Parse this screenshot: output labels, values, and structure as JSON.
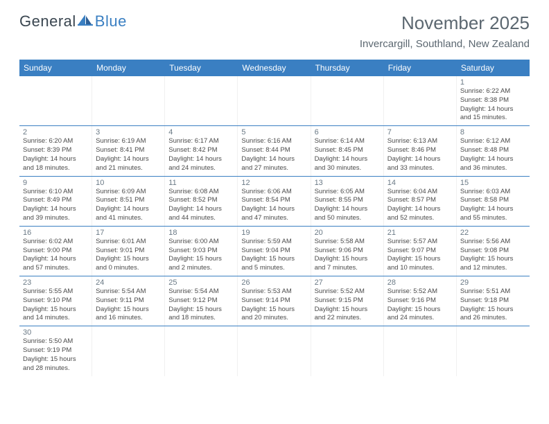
{
  "brand": {
    "part1": "General",
    "part2": "Blue"
  },
  "title": "November 2025",
  "location": "Invercargill, Southland, New Zealand",
  "colors": {
    "header_bg": "#3a7fc2",
    "header_text": "#ffffff",
    "logo_gray": "#5b6770",
    "logo_blue": "#3a7fc2",
    "cell_border": "#3a7fc2"
  },
  "day_names": [
    "Sunday",
    "Monday",
    "Tuesday",
    "Wednesday",
    "Thursday",
    "Friday",
    "Saturday"
  ],
  "weeks": [
    [
      null,
      null,
      null,
      null,
      null,
      null,
      {
        "n": "1",
        "sr": "Sunrise: 6:22 AM",
        "ss": "Sunset: 8:38 PM",
        "dl1": "Daylight: 14 hours",
        "dl2": "and 15 minutes."
      }
    ],
    [
      {
        "n": "2",
        "sr": "Sunrise: 6:20 AM",
        "ss": "Sunset: 8:39 PM",
        "dl1": "Daylight: 14 hours",
        "dl2": "and 18 minutes."
      },
      {
        "n": "3",
        "sr": "Sunrise: 6:19 AM",
        "ss": "Sunset: 8:41 PM",
        "dl1": "Daylight: 14 hours",
        "dl2": "and 21 minutes."
      },
      {
        "n": "4",
        "sr": "Sunrise: 6:17 AM",
        "ss": "Sunset: 8:42 PM",
        "dl1": "Daylight: 14 hours",
        "dl2": "and 24 minutes."
      },
      {
        "n": "5",
        "sr": "Sunrise: 6:16 AM",
        "ss": "Sunset: 8:44 PM",
        "dl1": "Daylight: 14 hours",
        "dl2": "and 27 minutes."
      },
      {
        "n": "6",
        "sr": "Sunrise: 6:14 AM",
        "ss": "Sunset: 8:45 PM",
        "dl1": "Daylight: 14 hours",
        "dl2": "and 30 minutes."
      },
      {
        "n": "7",
        "sr": "Sunrise: 6:13 AM",
        "ss": "Sunset: 8:46 PM",
        "dl1": "Daylight: 14 hours",
        "dl2": "and 33 minutes."
      },
      {
        "n": "8",
        "sr": "Sunrise: 6:12 AM",
        "ss": "Sunset: 8:48 PM",
        "dl1": "Daylight: 14 hours",
        "dl2": "and 36 minutes."
      }
    ],
    [
      {
        "n": "9",
        "sr": "Sunrise: 6:10 AM",
        "ss": "Sunset: 8:49 PM",
        "dl1": "Daylight: 14 hours",
        "dl2": "and 39 minutes."
      },
      {
        "n": "10",
        "sr": "Sunrise: 6:09 AM",
        "ss": "Sunset: 8:51 PM",
        "dl1": "Daylight: 14 hours",
        "dl2": "and 41 minutes."
      },
      {
        "n": "11",
        "sr": "Sunrise: 6:08 AM",
        "ss": "Sunset: 8:52 PM",
        "dl1": "Daylight: 14 hours",
        "dl2": "and 44 minutes."
      },
      {
        "n": "12",
        "sr": "Sunrise: 6:06 AM",
        "ss": "Sunset: 8:54 PM",
        "dl1": "Daylight: 14 hours",
        "dl2": "and 47 minutes."
      },
      {
        "n": "13",
        "sr": "Sunrise: 6:05 AM",
        "ss": "Sunset: 8:55 PM",
        "dl1": "Daylight: 14 hours",
        "dl2": "and 50 minutes."
      },
      {
        "n": "14",
        "sr": "Sunrise: 6:04 AM",
        "ss": "Sunset: 8:57 PM",
        "dl1": "Daylight: 14 hours",
        "dl2": "and 52 minutes."
      },
      {
        "n": "15",
        "sr": "Sunrise: 6:03 AM",
        "ss": "Sunset: 8:58 PM",
        "dl1": "Daylight: 14 hours",
        "dl2": "and 55 minutes."
      }
    ],
    [
      {
        "n": "16",
        "sr": "Sunrise: 6:02 AM",
        "ss": "Sunset: 9:00 PM",
        "dl1": "Daylight: 14 hours",
        "dl2": "and 57 minutes."
      },
      {
        "n": "17",
        "sr": "Sunrise: 6:01 AM",
        "ss": "Sunset: 9:01 PM",
        "dl1": "Daylight: 15 hours",
        "dl2": "and 0 minutes."
      },
      {
        "n": "18",
        "sr": "Sunrise: 6:00 AM",
        "ss": "Sunset: 9:03 PM",
        "dl1": "Daylight: 15 hours",
        "dl2": "and 2 minutes."
      },
      {
        "n": "19",
        "sr": "Sunrise: 5:59 AM",
        "ss": "Sunset: 9:04 PM",
        "dl1": "Daylight: 15 hours",
        "dl2": "and 5 minutes."
      },
      {
        "n": "20",
        "sr": "Sunrise: 5:58 AM",
        "ss": "Sunset: 9:06 PM",
        "dl1": "Daylight: 15 hours",
        "dl2": "and 7 minutes."
      },
      {
        "n": "21",
        "sr": "Sunrise: 5:57 AM",
        "ss": "Sunset: 9:07 PM",
        "dl1": "Daylight: 15 hours",
        "dl2": "and 10 minutes."
      },
      {
        "n": "22",
        "sr": "Sunrise: 5:56 AM",
        "ss": "Sunset: 9:08 PM",
        "dl1": "Daylight: 15 hours",
        "dl2": "and 12 minutes."
      }
    ],
    [
      {
        "n": "23",
        "sr": "Sunrise: 5:55 AM",
        "ss": "Sunset: 9:10 PM",
        "dl1": "Daylight: 15 hours",
        "dl2": "and 14 minutes."
      },
      {
        "n": "24",
        "sr": "Sunrise: 5:54 AM",
        "ss": "Sunset: 9:11 PM",
        "dl1": "Daylight: 15 hours",
        "dl2": "and 16 minutes."
      },
      {
        "n": "25",
        "sr": "Sunrise: 5:54 AM",
        "ss": "Sunset: 9:12 PM",
        "dl1": "Daylight: 15 hours",
        "dl2": "and 18 minutes."
      },
      {
        "n": "26",
        "sr": "Sunrise: 5:53 AM",
        "ss": "Sunset: 9:14 PM",
        "dl1": "Daylight: 15 hours",
        "dl2": "and 20 minutes."
      },
      {
        "n": "27",
        "sr": "Sunrise: 5:52 AM",
        "ss": "Sunset: 9:15 PM",
        "dl1": "Daylight: 15 hours",
        "dl2": "and 22 minutes."
      },
      {
        "n": "28",
        "sr": "Sunrise: 5:52 AM",
        "ss": "Sunset: 9:16 PM",
        "dl1": "Daylight: 15 hours",
        "dl2": "and 24 minutes."
      },
      {
        "n": "29",
        "sr": "Sunrise: 5:51 AM",
        "ss": "Sunset: 9:18 PM",
        "dl1": "Daylight: 15 hours",
        "dl2": "and 26 minutes."
      }
    ],
    [
      {
        "n": "30",
        "sr": "Sunrise: 5:50 AM",
        "ss": "Sunset: 9:19 PM",
        "dl1": "Daylight: 15 hours",
        "dl2": "and 28 minutes."
      },
      null,
      null,
      null,
      null,
      null,
      null
    ]
  ]
}
